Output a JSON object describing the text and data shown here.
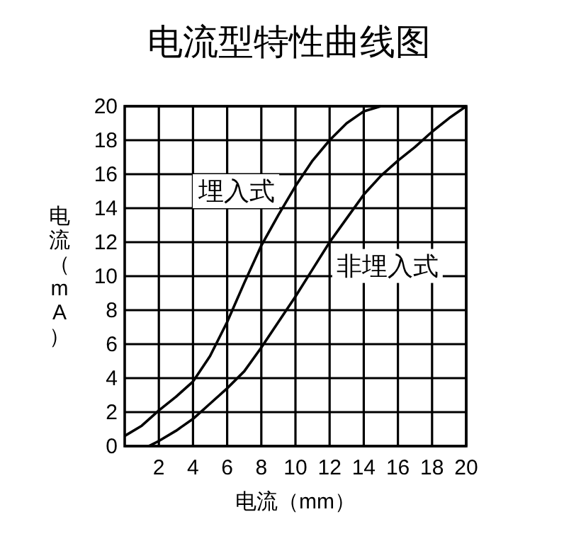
{
  "chart_data": {
    "type": "line",
    "title": "电流型特性曲线图",
    "xlabel": "电流（mm）",
    "ylabel": "电流（mA）",
    "xlim": [
      0,
      20
    ],
    "ylim": [
      0,
      20
    ],
    "xticks": [
      2,
      4,
      6,
      8,
      10,
      12,
      14,
      16,
      18,
      20
    ],
    "yticks": [
      0,
      2,
      4,
      6,
      8,
      10,
      12,
      14,
      16,
      18,
      20
    ],
    "grid": true,
    "series": [
      {
        "name": "埋入式",
        "color": "#000000",
        "x": [
          0,
          1,
          2,
          3,
          4,
          5,
          6,
          7,
          8,
          9,
          10,
          11,
          12,
          13,
          14,
          15
        ],
        "values": [
          0.6,
          1.2,
          2.1,
          2.9,
          3.8,
          5.3,
          7.3,
          9.6,
          11.8,
          13.6,
          15.3,
          16.8,
          18.0,
          19.0,
          19.7,
          20
        ]
      },
      {
        "name": "非埋入式",
        "color": "#000000",
        "x": [
          1.4,
          2,
          3,
          4,
          5,
          6,
          7,
          8,
          9,
          10,
          11,
          12,
          13,
          14,
          15,
          16,
          17,
          18,
          19,
          20
        ],
        "values": [
          0,
          0.3,
          0.9,
          1.6,
          2.5,
          3.4,
          4.4,
          5.8,
          7.3,
          8.8,
          10.4,
          12.0,
          13.4,
          14.8,
          15.9,
          16.8,
          17.6,
          18.5,
          19.3,
          20
        ]
      }
    ]
  }
}
